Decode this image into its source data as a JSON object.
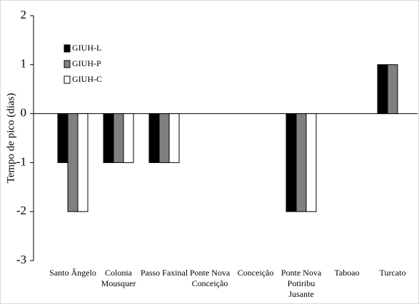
{
  "chart_data": {
    "type": "bar",
    "y_label": "Tempo de pico (dias)",
    "categories": [
      "Santo Ângelo",
      "Colonia\nMousquer",
      "Passo Faxinal",
      "Ponte Nova\nConceição",
      "Conceição",
      "Ponte Nova\nPotiribu\nJusante",
      "Taboao",
      "Turcato"
    ],
    "series": [
      {
        "name": "GIUH-L",
        "color": "#000000",
        "values": [
          -1,
          -1,
          -1,
          0,
          0,
          -2,
          0,
          1
        ]
      },
      {
        "name": "GIUH-P",
        "color": "#808080",
        "values": [
          -2,
          -1,
          -1,
          0,
          0,
          -2,
          0,
          1
        ]
      },
      {
        "name": "GIUH-C",
        "color": "#ffffff",
        "values": [
          -2,
          -1,
          -1,
          0,
          0,
          -2,
          0,
          0
        ]
      }
    ],
    "ylim": [
      -3,
      2
    ],
    "yticks": [
      -3,
      -2,
      -1,
      0,
      1,
      2
    ],
    "legend": "top-left"
  }
}
